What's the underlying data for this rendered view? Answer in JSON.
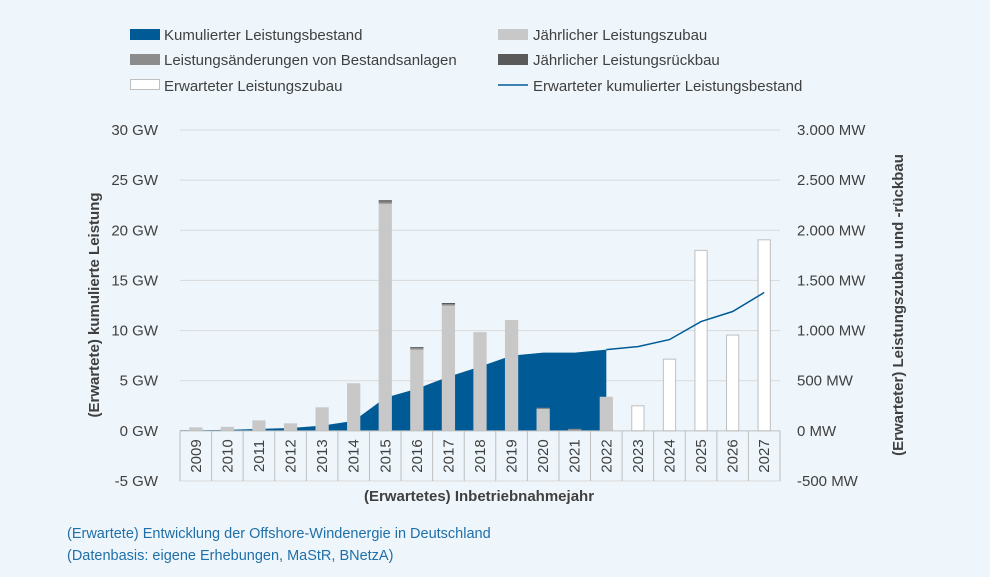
{
  "caption": {
    "line1": "(Erwartete) Entwicklung der Offshore-Windenergie in Deutschland",
    "line2": "(Datenbasis: eigene Erhebungen, MaStR, BNetzA)"
  },
  "colors": {
    "background": "#eef6fb",
    "cumulative_area": "#005a96",
    "annual_addition": "#c8c8c8",
    "changes_existing": "#8c8c8c",
    "annual_decommission": "#5a5a5a",
    "expected_addition_fill": "#ffffff",
    "expected_addition_stroke": "#bfbfbf",
    "expected_cumulative_line": "#005a96",
    "grid": "#d9d9d9"
  },
  "chart_data": {
    "type": "bar",
    "xlabel": "(Erwartetes) Inbetriebnahmejahr",
    "ylabel_left": "(Erwartete) kumulierte Leistung",
    "ylabel_right": "(Erwarteter) Leistungszubau und -rückbau",
    "ylim_left": [
      -5,
      30
    ],
    "ylim_right": [
      -500,
      3000
    ],
    "yticks_left": [
      "-5 GW",
      "0 GW",
      "5 GW",
      "10 GW",
      "15 GW",
      "20 GW",
      "25 GW",
      "30 GW"
    ],
    "yticks_right": [
      "-500 MW",
      "0 MW",
      "500 MW",
      "1.000 MW",
      "1.500 MW",
      "2.000 MW",
      "2.500 MW",
      "3.000 MW"
    ],
    "grid": true,
    "legend_position": "top",
    "categories": [
      "2009",
      "2010",
      "2011",
      "2012",
      "2013",
      "2014",
      "2015",
      "2016",
      "2017",
      "2018",
      "2019",
      "2020",
      "2021",
      "2022",
      "2023",
      "2024",
      "2025",
      "2026",
      "2027"
    ],
    "series": [
      {
        "name": "Kumulierter Leistungsbestand",
        "kind": "area",
        "axis": "left",
        "unit": "GW",
        "values": [
          0.06,
          0.1,
          0.2,
          0.28,
          0.52,
          1.0,
          3.3,
          4.2,
          5.4,
          6.4,
          7.5,
          7.8,
          7.8,
          8.1,
          null,
          null,
          null,
          null,
          null
        ]
      },
      {
        "name": "Jährlicher Leistungszubau",
        "kind": "bar",
        "axis": "right",
        "unit": "MW",
        "values": [
          35,
          40,
          105,
          75,
          235,
          475,
          2265,
          810,
          1250,
          985,
          1105,
          220,
          0,
          340,
          null,
          null,
          null,
          null,
          null
        ]
      },
      {
        "name": "Leistungsänderungen von Bestandsanlagen",
        "kind": "bar",
        "axis": "right",
        "unit": "MW",
        "values": [
          0,
          0,
          0,
          0,
          0,
          0,
          20,
          15,
          15,
          0,
          0,
          10,
          20,
          0,
          null,
          null,
          null,
          null,
          null
        ]
      },
      {
        "name": "Jährlicher Leistungsrückbau",
        "kind": "bar",
        "axis": "right",
        "unit": "MW",
        "values": [
          0,
          0,
          0,
          0,
          0,
          0,
          15,
          10,
          10,
          0,
          0,
          0,
          0,
          0,
          null,
          null,
          null,
          null,
          null
        ]
      },
      {
        "name": "Erwarteter Leistungszubau",
        "kind": "bar",
        "axis": "right",
        "unit": "MW",
        "values": [
          null,
          null,
          null,
          null,
          null,
          null,
          null,
          null,
          null,
          null,
          null,
          null,
          null,
          null,
          250,
          715,
          1800,
          955,
          1905
        ]
      },
      {
        "name": "Erwarteter kumulierter Leistungsbestand",
        "kind": "line",
        "axis": "left",
        "unit": "GW",
        "values": [
          null,
          null,
          null,
          null,
          null,
          null,
          null,
          null,
          null,
          null,
          null,
          null,
          null,
          8.1,
          8.4,
          9.1,
          10.9,
          11.9,
          13.8
        ]
      }
    ]
  }
}
